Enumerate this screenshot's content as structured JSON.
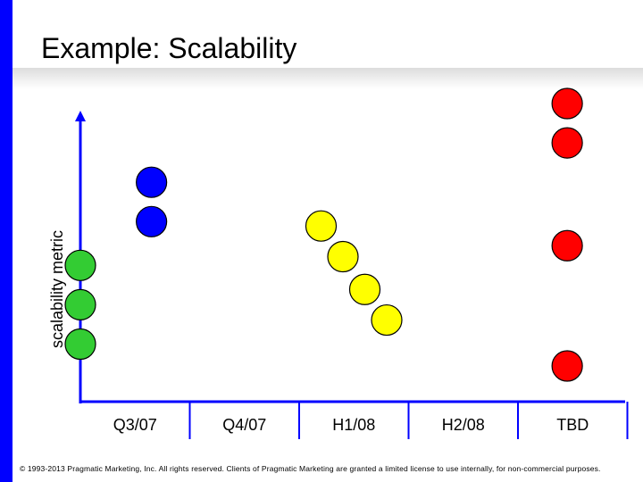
{
  "page": {
    "title": "Example: Scalability",
    "footer": "© 1993-2013 Pragmatic Marketing, Inc. All rights reserved. Clients of Pragmatic Marketing are granted a limited license to use internally, for non-commercial purposes.",
    "accent_color": "#0000ff"
  },
  "chart_data": {
    "type": "scatter",
    "title": "",
    "xlabel": "",
    "ylabel": "scalability metric",
    "categories": [
      "Q3/07",
      "Q4/07",
      "H1/08",
      "H2/08",
      "TBD"
    ],
    "grid": false,
    "legend": "none",
    "series": [
      {
        "color": "#33cc33",
        "points": [
          {
            "x": 0,
            "y": 23
          },
          {
            "x": 0,
            "y": 14
          },
          {
            "x": 0,
            "y": 5
          }
        ]
      },
      {
        "color": "#0000ff",
        "points": [
          {
            "x": 0.65,
            "y": 42
          },
          {
            "x": 0.65,
            "y": 33
          }
        ]
      },
      {
        "color": "#ffff00",
        "points": [
          {
            "x": 2.2,
            "y": 32
          },
          {
            "x": 2.4,
            "y": 25
          },
          {
            "x": 2.6,
            "y": 17.5
          },
          {
            "x": 2.8,
            "y": 10.5
          }
        ]
      },
      {
        "color": "#ff0000",
        "points": [
          {
            "x": 4.45,
            "y": 60
          },
          {
            "x": 4.45,
            "y": 51
          },
          {
            "x": 4.45,
            "y": 27.5
          },
          {
            "x": 4.45,
            "y": 0
          }
        ]
      }
    ]
  }
}
